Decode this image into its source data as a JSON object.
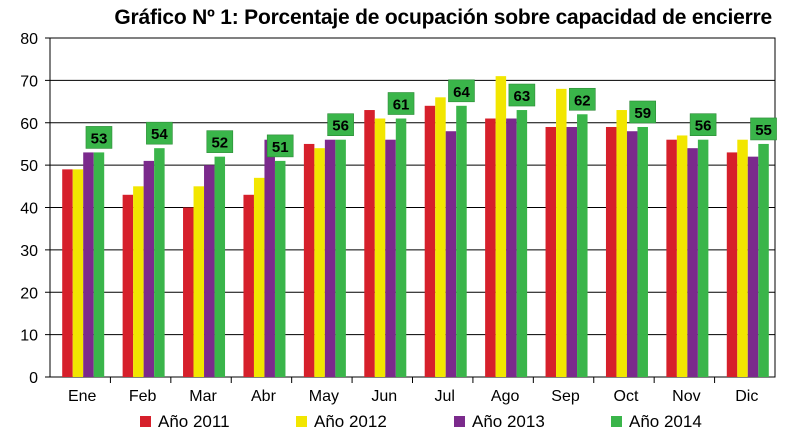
{
  "chart_data": {
    "type": "bar",
    "title": "Gráfico Nº 1: Porcentaje de ocupación sobre capacidad de encierre",
    "xlabel": "",
    "ylabel": "",
    "ylim": [
      0,
      80
    ],
    "yticks": [
      "0",
      "10",
      "20",
      "30",
      "40",
      "50",
      "60",
      "70",
      "80"
    ],
    "grid": true,
    "legend_position": "bottom",
    "categories": [
      "Ene",
      "Feb",
      "Mar",
      "Abr",
      "May",
      "Jun",
      "Jul",
      "Ago",
      "Sep",
      "Oct",
      "Nov",
      "Dic"
    ],
    "series": [
      {
        "name": "Año 2011",
        "color": "#d6202b",
        "values": [
          49,
          43,
          40,
          43,
          55,
          63,
          64,
          61,
          59,
          59,
          56,
          53
        ]
      },
      {
        "name": "Año 2012",
        "color": "#f2e600",
        "values": [
          49,
          45,
          45,
          47,
          54,
          61,
          66,
          71,
          68,
          63,
          57,
          56
        ]
      },
      {
        "name": "Año 2013",
        "color": "#7b2a8c",
        "values": [
          53,
          51,
          50,
          56,
          56,
          56,
          58,
          61,
          59,
          58,
          54,
          52
        ]
      },
      {
        "name": "Año 2014",
        "color": "#3ab54a",
        "values": [
          53,
          54,
          52,
          51,
          56,
          61,
          64,
          63,
          62,
          59,
          56,
          55
        ]
      }
    ],
    "data_labels": {
      "series": "Año 2014",
      "values": [
        "53",
        "54",
        "52",
        "51",
        "56",
        "61",
        "64",
        "63",
        "62",
        "59",
        "56",
        "55"
      ]
    }
  }
}
